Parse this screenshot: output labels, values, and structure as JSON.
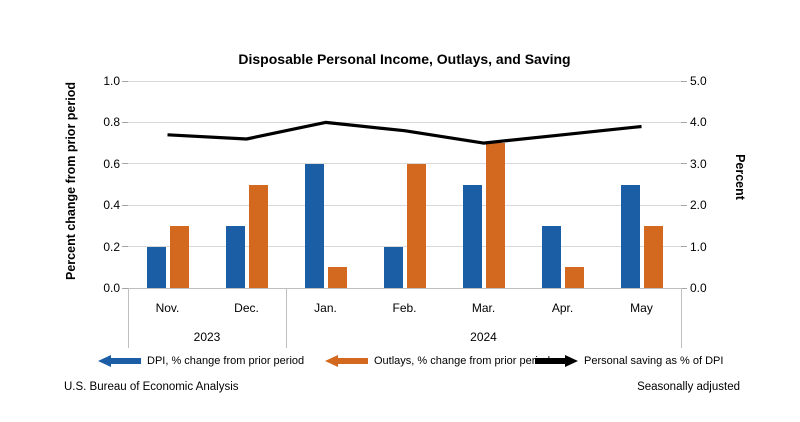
{
  "title": "Disposable Personal Income, Outlays, and Saving",
  "footer": {
    "left": "U.S. Bureau of Economic Analysis",
    "right": "Seasonally adjusted"
  },
  "colors": {
    "dpi_blue": "#1b5ea6",
    "outlays_orange": "#d2691e",
    "saving_black": "#000000",
    "gridline": "#d9d9d9",
    "axis_line": "#bfbfbf"
  },
  "chart_data": {
    "type": "bar",
    "subtype": "grouped bars with overlaid line on secondary axis",
    "categories": [
      "Nov.",
      "Dec.",
      "Jan.",
      "Feb.",
      "Mar.",
      "Apr.",
      "May"
    ],
    "year_groups": [
      {
        "label": "2023",
        "start": 0,
        "end": 2
      },
      {
        "label": "2024",
        "start": 2,
        "end": 7
      }
    ],
    "series": [
      {
        "name": "DPI, % change from prior period",
        "type": "bar",
        "axis": "left",
        "color": "#1b5ea6",
        "values": [
          0.2,
          0.3,
          0.6,
          0.2,
          0.5,
          0.3,
          0.5
        ]
      },
      {
        "name": "Outlays, % change from prior period",
        "type": "bar",
        "axis": "left",
        "color": "#d2691e",
        "values": [
          0.3,
          0.5,
          0.1,
          0.6,
          0.7,
          0.1,
          0.3
        ]
      },
      {
        "name": "Personal saving as % of DPI",
        "type": "line",
        "axis": "right",
        "color": "#000000",
        "values": [
          3.7,
          3.6,
          4.0,
          3.8,
          3.5,
          3.7,
          3.9
        ]
      }
    ],
    "left_axis": {
      "label": "Percent change from prior period",
      "ticks": [
        "1.0",
        "0.8",
        "0.6",
        "0.4",
        "0.2",
        "0.0"
      ],
      "min": 0.0,
      "max": 1.0
    },
    "right_axis": {
      "label": "Percent",
      "ticks": [
        "5.0",
        "4.0",
        "3.0",
        "2.0",
        "1.0",
        "0.0"
      ],
      "min": 0.0,
      "max": 5.0
    },
    "grid": true,
    "legend_position": "bottom"
  },
  "legend": [
    {
      "label": "DPI, % change from prior period",
      "marker": "left-arrow",
      "color": "#1b5ea6"
    },
    {
      "label": "Outlays, % change from prior period",
      "marker": "left-arrow",
      "color": "#d2691e"
    },
    {
      "label": "Personal saving as % of DPI",
      "marker": "right-arrow",
      "color": "#000000"
    }
  ]
}
